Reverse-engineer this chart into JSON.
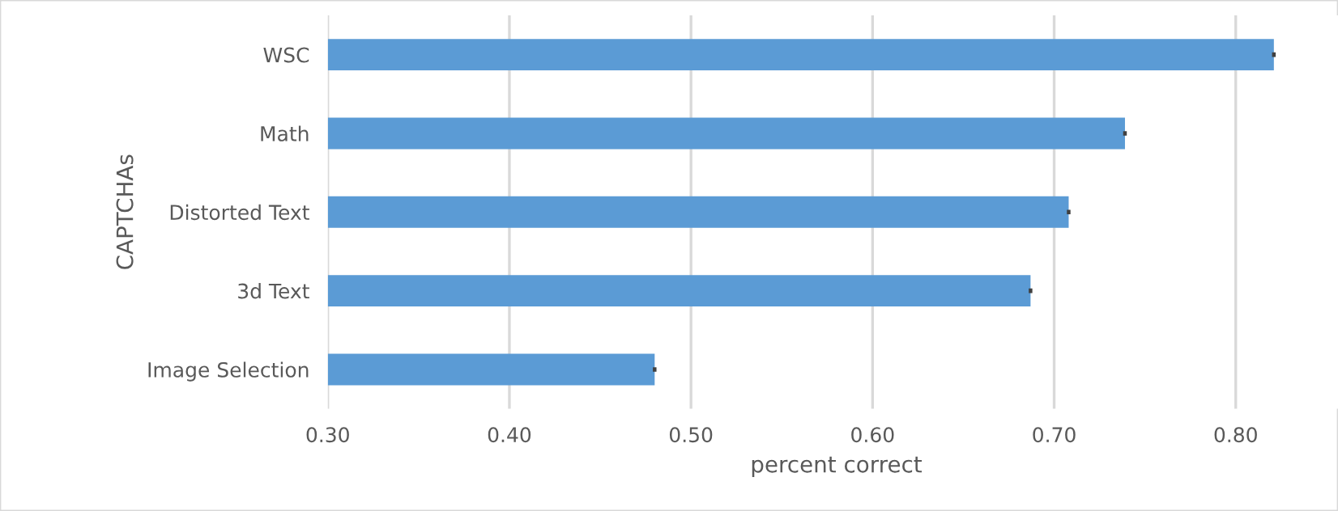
{
  "chart_data": {
    "type": "bar",
    "orientation": "horizontal",
    "xlabel": "percent correct",
    "ylabel": "CAPTCHAs",
    "categories": [
      "WSC",
      "Math",
      "Distorted Text",
      "3d Text",
      "Image Selection"
    ],
    "values": [
      0.821,
      0.739,
      0.708,
      0.687,
      0.48
    ],
    "errors": [
      0.001,
      0.001,
      0.001,
      0.001,
      0.001
    ],
    "color": "#5b9bd5",
    "xlim": [
      0.3,
      0.86
    ],
    "xticks": [
      {
        "value": 0.3,
        "label": "0.30"
      },
      {
        "value": 0.4,
        "label": "0.40"
      },
      {
        "value": 0.5,
        "label": "0.50"
      },
      {
        "value": 0.6,
        "label": "0.60"
      },
      {
        "value": 0.7,
        "label": "0.70"
      },
      {
        "value": 0.8,
        "label": "0.80"
      }
    ],
    "grid": "x"
  }
}
